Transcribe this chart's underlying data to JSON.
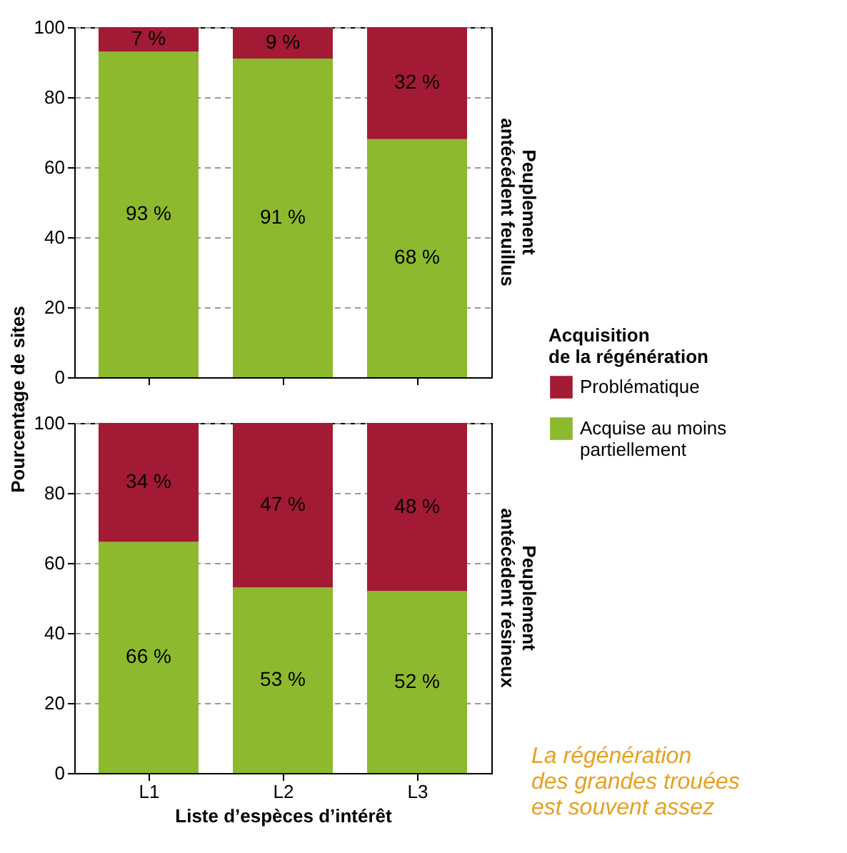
{
  "chart_data": [
    {
      "type": "bar",
      "stacked": true,
      "categories": [
        null,
        null,
        null
      ],
      "ylabel": "Pourcentage de sites",
      "y2label": "Peuplement\nantécédent feuillus",
      "legend_title": "Acquisition\nde la régénération",
      "legend": "right",
      "ylim": [
        0,
        100
      ],
      "yticks": [
        0,
        20,
        40,
        60,
        80,
        100
      ],
      "grid": "y",
      "tick_labels": "y",
      "series": [
        {
          "name": "Acquise au moins\npartiellement",
          "color": "#8db92e",
          "values": [
            93,
            91,
            68
          ],
          "value_labels": [
            "93 %",
            "91 %",
            "68 %"
          ]
        },
        {
          "name": "Problématique",
          "color": "#a31a35",
          "values": [
            7,
            9,
            32
          ],
          "value_labels": [
            "7 %",
            "9 %",
            "32 %"
          ]
        }
      ]
    },
    {
      "type": "bar",
      "stacked": true,
      "categories": [
        "L1",
        "L2",
        "L3"
      ],
      "xlabel": "Liste d’espèces d’intérêt",
      "y2label": "Peuplement\nantécédent résineux",
      "ylim": [
        0,
        100
      ],
      "yticks": [
        0,
        20,
        40,
        60,
        80,
        100
      ],
      "grid": "y",
      "annotations": [
        "La régénération\ndes grandes trouées\nest souvent assez"
      ],
      "series": [
        {
          "name": "Acquise au moins\npartiellement",
          "color": "#8db92e",
          "values": [
            66,
            53,
            52
          ],
          "value_labels": [
            "66 %",
            "53 %",
            "52 %"
          ]
        },
        {
          "name": "Problématique",
          "color": "#a31a35",
          "values": [
            34,
            47,
            48
          ],
          "value_labels": [
            "34 %",
            "47 %",
            "48 %"
          ]
        }
      ]
    }
  ]
}
